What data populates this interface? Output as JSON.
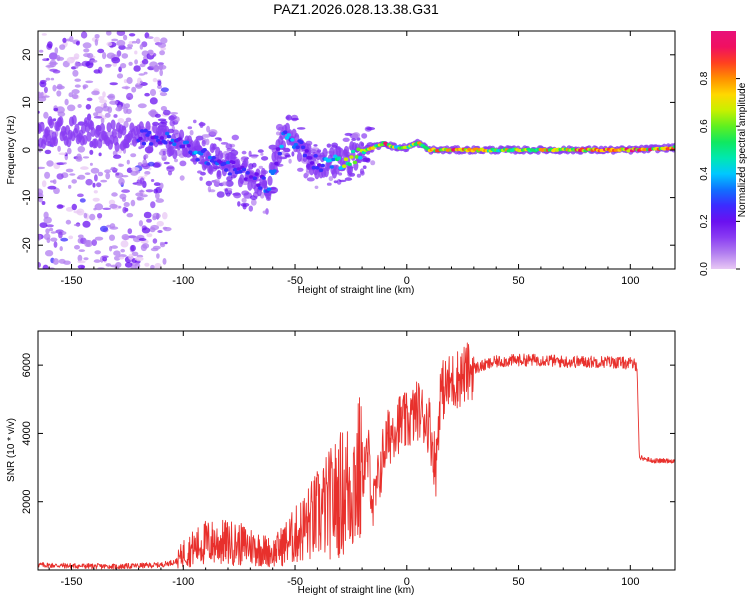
{
  "title": "PAZ1.2026.028.13.38.G31",
  "colors": {
    "snr_line": "#e8302c",
    "colormap": [
      "#e8c8f4",
      "#b27ef0",
      "#8a3cf2",
      "#6a10f0",
      "#3c2cff",
      "#1070ff",
      "#00c8ff",
      "#00e8b0",
      "#10e860",
      "#60f020",
      "#c8f000",
      "#ffd800",
      "#ff9000",
      "#ff4020",
      "#f01060",
      "#e8107a"
    ]
  },
  "chart_data": [
    {
      "type": "heatmap",
      "name": "spectrogram",
      "title": "PAZ1.2026.028.13.38.G31",
      "xlabel": "Height of straight line (km)",
      "ylabel": "Frequency (Hz)",
      "xlim": [
        -165,
        120
      ],
      "ylim": [
        -25,
        25
      ],
      "xticks": [
        "-150",
        "-100",
        "-50",
        "0",
        "50",
        "100"
      ],
      "yticks": [
        "-20",
        "-10",
        "0",
        "10",
        "20"
      ],
      "colorbar": {
        "label": "Normalized spectral amplitude",
        "range": [
          0,
          1
        ],
        "ticks": [
          "0.0",
          "0.2",
          "0.4",
          "0.6",
          "0.8"
        ]
      },
      "ridge": {
        "description": "dominant frequency vs height",
        "x": [
          -165,
          -150,
          -130,
          -110,
          -100,
          -90,
          -80,
          -70,
          -62,
          -55,
          -50,
          -45,
          -40,
          -35,
          -30,
          -25,
          -20,
          -15,
          -10,
          -5,
          0,
          5,
          10,
          20,
          40,
          60,
          80,
          100,
          120
        ],
        "y": [
          3.5,
          4,
          3,
          2.5,
          1,
          -1.5,
          -3.5,
          -5.5,
          -7.5,
          3,
          2,
          -1,
          -3,
          -2.5,
          -2.5,
          -1.5,
          -0.5,
          0.5,
          1.5,
          0.5,
          0.5,
          1.5,
          0,
          0,
          0,
          0,
          0,
          0,
          0.5
        ],
        "amplitude": [
          0.2,
          0.2,
          0.25,
          0.3,
          0.35,
          0.35,
          0.3,
          0.25,
          0.3,
          0.4,
          0.35,
          0.3,
          0.3,
          0.4,
          0.55,
          0.65,
          0.6,
          0.75,
          0.9,
          0.7,
          0.65,
          0.8,
          0.75,
          0.9,
          0.7,
          0.75,
          0.9,
          0.95,
          0.8
        ]
      }
    },
    {
      "type": "line",
      "name": "snr",
      "xlabel": "Height of straight line (km)",
      "ylabel": "SNR (10 * v/v)",
      "xlim": [
        -165,
        120
      ],
      "ylim": [
        0,
        7000
      ],
      "xticks": [
        "-150",
        "-100",
        "-50",
        "0",
        "50",
        "100"
      ],
      "yticks": [
        "2000",
        "4000",
        "6000"
      ],
      "series": [
        {
          "name": "SNR",
          "x": [
            -165,
            -150,
            -130,
            -110,
            -103,
            -100,
            -90,
            -80,
            -70,
            -60,
            -50,
            -40,
            -30,
            -25,
            -20,
            -17,
            -15,
            -10,
            -5,
            0,
            5,
            10,
            13,
            15,
            20,
            30,
            40,
            50,
            60,
            62,
            70,
            80,
            90,
            100,
            103,
            104,
            110,
            120
          ],
          "y": [
            150,
            120,
            100,
            150,
            250,
            500,
            800,
            800,
            700,
            500,
            1000,
            1600,
            2200,
            2500,
            2900,
            3300,
            1800,
            3600,
            4300,
            4300,
            4700,
            4300,
            3000,
            5200,
            5500,
            5900,
            6100,
            6150,
            6150,
            6150,
            6100,
            6100,
            6100,
            6050,
            6000,
            3300,
            3200,
            3200
          ]
        }
      ]
    }
  ]
}
